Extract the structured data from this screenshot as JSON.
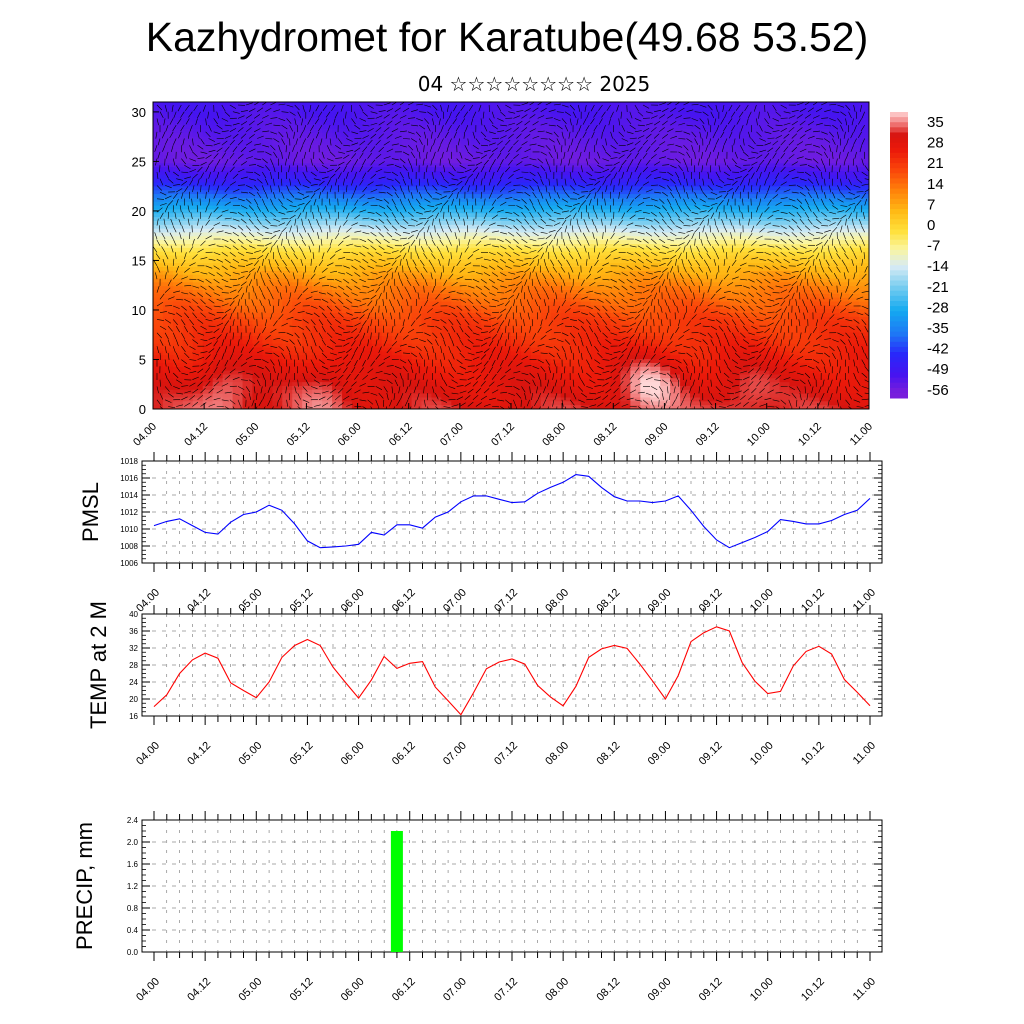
{
  "title": "Kazhydromet for Karatube(49.68 53.52)",
  "subtitle": "04 ☆☆☆☆☆☆☆☆ 2025",
  "x_ticks": [
    "04.00",
    "04.12",
    "05.00",
    "05.12",
    "06.00",
    "06.12",
    "07.00",
    "07.12",
    "08.00",
    "08.12",
    "09.00",
    "09.12",
    "10.00",
    "10.12",
    "11.00"
  ],
  "chart_data": [
    {
      "type": "heatmap",
      "description_label": "",
      "x": [
        "04.00",
        "04.12",
        "05.00",
        "05.12",
        "06.00",
        "06.12",
        "07.00",
        "07.12",
        "08.00",
        "08.12",
        "09.00",
        "09.12",
        "10.00",
        "10.12",
        "11.00"
      ],
      "y_ticks": [
        0,
        5,
        10,
        15,
        20,
        25,
        30
      ],
      "ylim": [
        0,
        31
      ],
      "colorbar_labels": [
        "35",
        "28",
        "21",
        "14",
        "7",
        "0",
        "-7",
        "-14",
        "-21",
        "-28",
        "-35",
        "-42",
        "-49",
        "-56"
      ],
      "colorbar_values": [
        35,
        28,
        21,
        14,
        7,
        0,
        -7,
        -14,
        -21,
        -28,
        -35,
        -42,
        -49,
        -56
      ],
      "profile": {
        "levels": [
          0,
          3,
          6,
          9,
          12,
          14,
          16,
          17.5,
          19,
          21,
          23,
          25,
          27,
          31
        ],
        "temps": [
          30,
          27,
          23,
          19,
          12,
          5,
          -3,
          -12,
          -22,
          -35,
          -48,
          -56,
          -55,
          -52
        ]
      },
      "hot_spots": [
        {
          "x_day": 0.7,
          "y": 2,
          "value": 35
        },
        {
          "x_day": 1.7,
          "y": 2,
          "value": 33
        },
        {
          "x_day": 4.85,
          "y": 2.5,
          "value": 37
        },
        {
          "x_day": 5.8,
          "y": 2,
          "value": 33
        }
      ],
      "grid": false
    },
    {
      "type": "line",
      "ylabel": "PMSL",
      "x_days": [
        0.0,
        0.125,
        0.25,
        0.375,
        0.5,
        0.625,
        0.75,
        0.875,
        1.0,
        1.125,
        1.25,
        1.375,
        1.5,
        1.625,
        1.75,
        1.875,
        2.0,
        2.125,
        2.25,
        2.375,
        2.5,
        2.625,
        2.75,
        2.875,
        3.0,
        3.125,
        3.25,
        3.375,
        3.5,
        3.625,
        3.75,
        3.875,
        4.0,
        4.125,
        4.25,
        4.375,
        4.5,
        4.625,
        4.75,
        4.875,
        5.0,
        5.125,
        5.25,
        5.375,
        5.5,
        5.625,
        5.75,
        5.875,
        6.0,
        6.125,
        6.25,
        6.375,
        6.5,
        6.625,
        6.75,
        6.875,
        7.0
      ],
      "values": [
        1010.4,
        1010.9,
        1011.2,
        1010.4,
        1009.6,
        1009.4,
        1010.8,
        1011.7,
        1012.0,
        1012.8,
        1012.2,
        1010.6,
        1008.6,
        1007.8,
        1007.9,
        1008.0,
        1008.2,
        1009.6,
        1009.3,
        1010.5,
        1010.5,
        1010.1,
        1011.4,
        1012.0,
        1013.2,
        1013.9,
        1013.9,
        1013.5,
        1013.1,
        1013.2,
        1014.2,
        1014.9,
        1015.5,
        1016.4,
        1016.2,
        1014.9,
        1013.8,
        1013.3,
        1013.3,
        1013.1,
        1013.3,
        1013.9,
        1012.2,
        1010.3,
        1008.7,
        1007.8,
        1008.4,
        1009.0,
        1009.7,
        1011.1,
        1010.9,
        1010.6,
        1010.6,
        1011.0,
        1011.7,
        1012.2,
        1013.6
      ],
      "ylim": [
        1006,
        1018
      ],
      "y_ticks": [
        1006,
        1008,
        1010,
        1012,
        1014,
        1016,
        1018
      ],
      "color": "#0000ff",
      "grid": true
    },
    {
      "type": "line",
      "ylabel": "TEMP at 2 M",
      "x_days": [
        0.0,
        0.125,
        0.25,
        0.375,
        0.5,
        0.625,
        0.75,
        0.875,
        1.0,
        1.125,
        1.25,
        1.375,
        1.5,
        1.625,
        1.75,
        1.875,
        2.0,
        2.125,
        2.25,
        2.375,
        2.5,
        2.625,
        2.75,
        2.875,
        3.0,
        3.125,
        3.25,
        3.375,
        3.5,
        3.625,
        3.75,
        3.875,
        4.0,
        4.125,
        4.25,
        4.375,
        4.5,
        4.625,
        4.75,
        4.875,
        5.0,
        5.125,
        5.25,
        5.375,
        5.5,
        5.625,
        5.75,
        5.875,
        6.0,
        6.125,
        6.25,
        6.375,
        6.5,
        6.625,
        6.75,
        6.875,
        7.0
      ],
      "values": [
        18.2,
        21.0,
        26.0,
        29.2,
        30.8,
        29.6,
        23.8,
        22.0,
        20.3,
        24.0,
        29.8,
        32.6,
        34.0,
        32.6,
        27.5,
        23.8,
        20.2,
        24.5,
        30.0,
        27.2,
        28.4,
        28.8,
        22.8,
        19.6,
        16.3,
        21.5,
        27.1,
        28.7,
        29.4,
        28.2,
        23.2,
        20.5,
        18.4,
        23.0,
        29.8,
        31.8,
        32.6,
        31.9,
        28.2,
        24.2,
        20.0,
        25.5,
        33.5,
        35.6,
        37.0,
        36.0,
        28.6,
        24.2,
        21.3,
        21.8,
        27.8,
        31.2,
        32.4,
        30.6,
        24.6,
        21.6,
        18.4
      ],
      "ylim": [
        16,
        40
      ],
      "y_ticks": [
        16,
        20,
        24,
        28,
        32,
        36,
        40
      ],
      "color": "#ff0000",
      "grid": true
    },
    {
      "type": "bar",
      "ylabel": "PRECIP, mm",
      "bars": [
        {
          "x_day": 2.375,
          "value": 2.2
        }
      ],
      "ylim": [
        0.0,
        2.4
      ],
      "y_ticks": [
        "0.0",
        "0.4",
        "0.8",
        "1.2",
        "1.6",
        "2.0",
        "2.4"
      ],
      "color": "#00ff00",
      "grid": true
    }
  ]
}
